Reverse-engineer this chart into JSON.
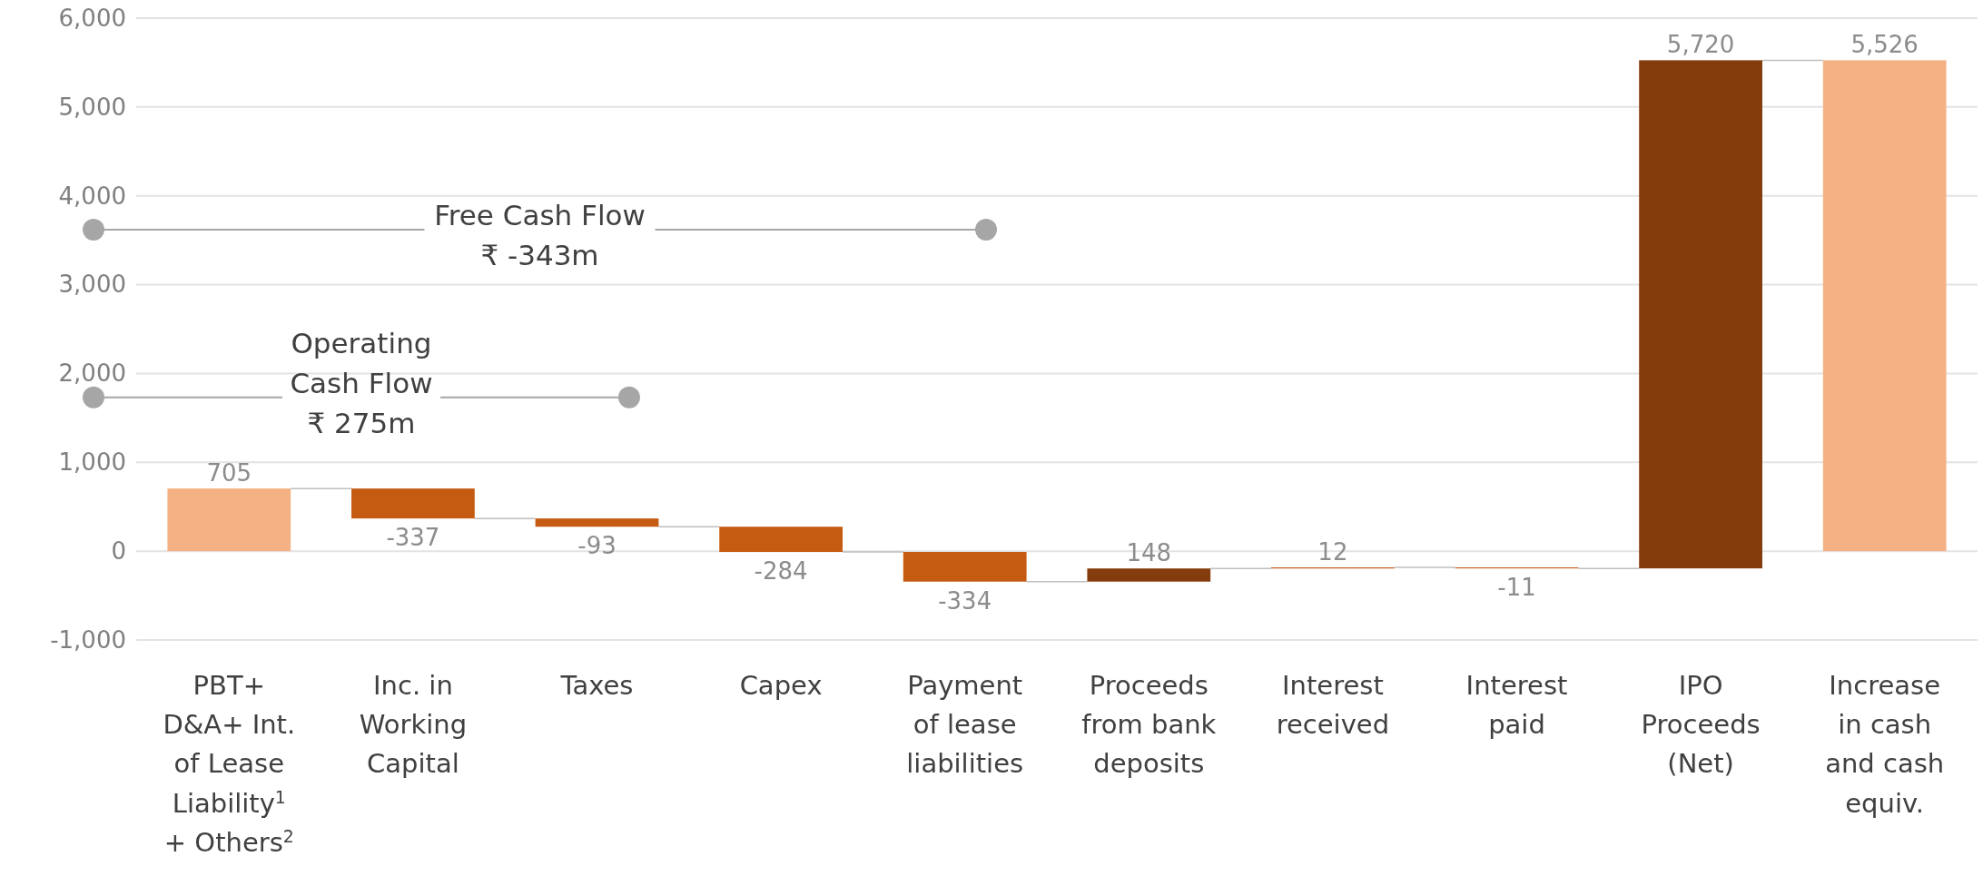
{
  "chart_data": {
    "type": "bar",
    "categories": [
      "PBT+ D&A+ Int. of Lease Liability$^{1}$ + Others$^{2}$",
      "Inc. in Working Capital",
      "Taxes",
      "Capex",
      "Payment of lease liabilities",
      "Proceeds from bank deposits",
      "Interest received",
      "Interest paid",
      "IPO Proceeds (Net)",
      "Increase in cash and cash equiv."
    ],
    "values": [
      705,
      -337,
      -93,
      -284,
      -334,
      148,
      12,
      -11,
      5720,
      5526
    ],
    "base": [
      0,
      705,
      368,
      275,
      -9,
      -343,
      -195,
      -183,
      -194,
      0
    ],
    "colors": [
      "#f4b183",
      "#c55a11",
      "#c55a11",
      "#c55a11",
      "#c55a11",
      "#843c0c",
      "#c55a11",
      "#c55a11",
      "#843c0c",
      "#f4b183"
    ],
    "value_labels": [
      "705",
      "-337",
      "-93",
      "-284",
      "-334",
      "148",
      "12",
      "-11",
      "5,720",
      "5,526"
    ],
    "ylim": [
      -1000,
      6000
    ],
    "yticks": [
      {
        "value": -1000,
        "label": "-1,000"
      },
      {
        "value": 0,
        "label": "0"
      },
      {
        "value": 1000,
        "label": "1,000"
      },
      {
        "value": 2000,
        "label": "2,000"
      },
      {
        "value": 3000,
        "label": "3,000"
      },
      {
        "value": 4000,
        "label": "4,000"
      },
      {
        "value": 5000,
        "label": "5,000"
      },
      {
        "value": 6000,
        "label": "6,000"
      }
    ],
    "grid": "y",
    "annotations": [
      "Free Cash Flow\n₹ -343m",
      "Operating\nCash Flow\n₹ 275m"
    ]
  }
}
